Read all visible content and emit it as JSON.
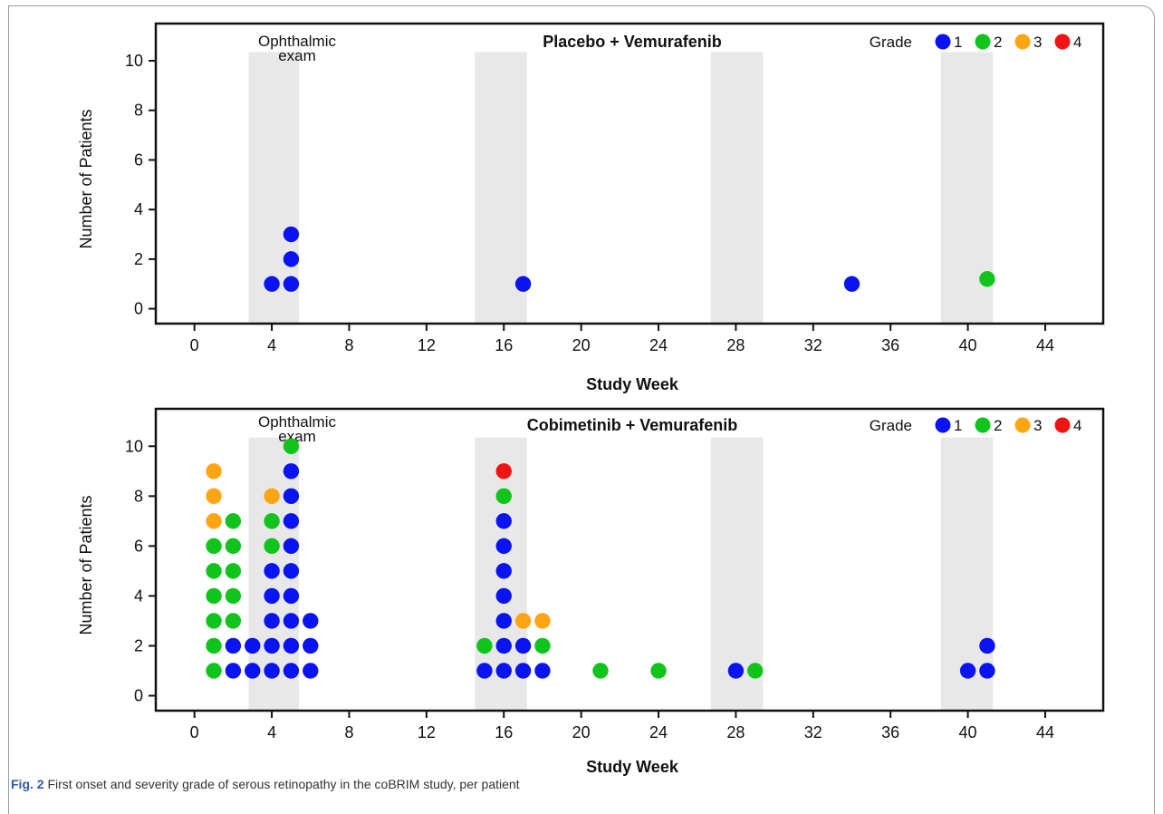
{
  "caption": {
    "label": "Fig. 2",
    "text": "First onset and severity grade of serous retinopathy in the coBRIM study, per patient"
  },
  "colors": {
    "grade_1": "#0a14f0",
    "grade_2": "#10c41c",
    "grade_3": "#ffa514",
    "grade_4": "#f01414",
    "shading": "#e8e8e8",
    "axis": "#111111"
  },
  "chart_data": [
    {
      "type": "scatter",
      "title": "Placebo + Vemurafenib",
      "xlabel": "Study Week",
      "ylabel": "Number of Patients",
      "xlim": [
        -2,
        47
      ],
      "ylim": [
        -0.6,
        11.5
      ],
      "xticks": [
        0,
        4,
        8,
        12,
        16,
        20,
        24,
        28,
        32,
        36,
        40,
        44
      ],
      "yticks": [
        0,
        2,
        4,
        6,
        8,
        10
      ],
      "annotation": "Ophthalmic exam",
      "legend_title": "Grade",
      "legend_position": "top-right",
      "legend": [
        "1",
        "2",
        "3",
        "4"
      ],
      "exam_windows": [
        [
          2.8,
          5.4
        ],
        [
          14.5,
          17.2
        ],
        [
          26.7,
          29.4
        ],
        [
          38.6,
          41.3
        ]
      ],
      "grid": false,
      "points": [
        {
          "x": 4,
          "y": 1,
          "grade": 1
        },
        {
          "x": 5,
          "y": 1,
          "grade": 1
        },
        {
          "x": 5,
          "y": 2,
          "grade": 1
        },
        {
          "x": 5,
          "y": 3,
          "grade": 1
        },
        {
          "x": 17,
          "y": 1,
          "grade": 1
        },
        {
          "x": 34,
          "y": 1,
          "grade": 1
        },
        {
          "x": 41,
          "y": 1.2,
          "grade": 2
        }
      ]
    },
    {
      "type": "scatter",
      "title": "Cobimetinib + Vemurafenib",
      "xlabel": "Study Week",
      "ylabel": "Number of Patients",
      "xlim": [
        -2,
        47
      ],
      "ylim": [
        -0.6,
        11.5
      ],
      "xticks": [
        0,
        4,
        8,
        12,
        16,
        20,
        24,
        28,
        32,
        36,
        40,
        44
      ],
      "yticks": [
        0,
        2,
        4,
        6,
        8,
        10
      ],
      "annotation": "Ophthalmic exam",
      "legend_title": "Grade",
      "legend_position": "top-right",
      "legend": [
        "1",
        "2",
        "3",
        "4"
      ],
      "exam_windows": [
        [
          2.8,
          5.4
        ],
        [
          14.5,
          17.2
        ],
        [
          26.7,
          29.4
        ],
        [
          38.6,
          41.3
        ]
      ],
      "grid": false,
      "points": [
        {
          "x": 1,
          "y": 1,
          "grade": 2
        },
        {
          "x": 1,
          "y": 2,
          "grade": 2
        },
        {
          "x": 1,
          "y": 3,
          "grade": 2
        },
        {
          "x": 1,
          "y": 4,
          "grade": 2
        },
        {
          "x": 1,
          "y": 5,
          "grade": 2
        },
        {
          "x": 1,
          "y": 6,
          "grade": 2
        },
        {
          "x": 1,
          "y": 7,
          "grade": 3
        },
        {
          "x": 1,
          "y": 8,
          "grade": 3
        },
        {
          "x": 1,
          "y": 9,
          "grade": 3
        },
        {
          "x": 2,
          "y": 1,
          "grade": 1
        },
        {
          "x": 2,
          "y": 2,
          "grade": 1
        },
        {
          "x": 2,
          "y": 3,
          "grade": 2
        },
        {
          "x": 2,
          "y": 4,
          "grade": 2
        },
        {
          "x": 2,
          "y": 5,
          "grade": 2
        },
        {
          "x": 2,
          "y": 6,
          "grade": 2
        },
        {
          "x": 2,
          "y": 7,
          "grade": 2
        },
        {
          "x": 3,
          "y": 1,
          "grade": 1
        },
        {
          "x": 3,
          "y": 2,
          "grade": 1
        },
        {
          "x": 4,
          "y": 1,
          "grade": 1
        },
        {
          "x": 4,
          "y": 2,
          "grade": 1
        },
        {
          "x": 4,
          "y": 3,
          "grade": 1
        },
        {
          "x": 4,
          "y": 4,
          "grade": 1
        },
        {
          "x": 4,
          "y": 5,
          "grade": 1
        },
        {
          "x": 4,
          "y": 6,
          "grade": 2
        },
        {
          "x": 4,
          "y": 7,
          "grade": 2
        },
        {
          "x": 4,
          "y": 8,
          "grade": 3
        },
        {
          "x": 5,
          "y": 1,
          "grade": 1
        },
        {
          "x": 5,
          "y": 2,
          "grade": 1
        },
        {
          "x": 5,
          "y": 3,
          "grade": 1
        },
        {
          "x": 5,
          "y": 4,
          "grade": 1
        },
        {
          "x": 5,
          "y": 5,
          "grade": 1
        },
        {
          "x": 5,
          "y": 6,
          "grade": 1
        },
        {
          "x": 5,
          "y": 7,
          "grade": 1
        },
        {
          "x": 5,
          "y": 8,
          "grade": 1
        },
        {
          "x": 5,
          "y": 9,
          "grade": 1
        },
        {
          "x": 5,
          "y": 10,
          "grade": 2
        },
        {
          "x": 6,
          "y": 1,
          "grade": 1
        },
        {
          "x": 6,
          "y": 2,
          "grade": 1
        },
        {
          "x": 6,
          "y": 3,
          "grade": 1
        },
        {
          "x": 15,
          "y": 1,
          "grade": 1
        },
        {
          "x": 15,
          "y": 2,
          "grade": 2
        },
        {
          "x": 16,
          "y": 1,
          "grade": 1
        },
        {
          "x": 16,
          "y": 2,
          "grade": 1
        },
        {
          "x": 16,
          "y": 3,
          "grade": 1
        },
        {
          "x": 16,
          "y": 4,
          "grade": 1
        },
        {
          "x": 16,
          "y": 5,
          "grade": 1
        },
        {
          "x": 16,
          "y": 6,
          "grade": 1
        },
        {
          "x": 16,
          "y": 7,
          "grade": 1
        },
        {
          "x": 16,
          "y": 8,
          "grade": 2
        },
        {
          "x": 16,
          "y": 9,
          "grade": 4
        },
        {
          "x": 17,
          "y": 1,
          "grade": 1
        },
        {
          "x": 17,
          "y": 2,
          "grade": 1
        },
        {
          "x": 17,
          "y": 3,
          "grade": 3
        },
        {
          "x": 18,
          "y": 1,
          "grade": 1
        },
        {
          "x": 18,
          "y": 2,
          "grade": 2
        },
        {
          "x": 18,
          "y": 3,
          "grade": 3
        },
        {
          "x": 21,
          "y": 1,
          "grade": 2
        },
        {
          "x": 24,
          "y": 1,
          "grade": 2
        },
        {
          "x": 28,
          "y": 1,
          "grade": 1
        },
        {
          "x": 29,
          "y": 1,
          "grade": 2
        },
        {
          "x": 40,
          "y": 1,
          "grade": 1
        },
        {
          "x": 41,
          "y": 1,
          "grade": 1
        },
        {
          "x": 41,
          "y": 2,
          "grade": 1
        }
      ]
    }
  ]
}
